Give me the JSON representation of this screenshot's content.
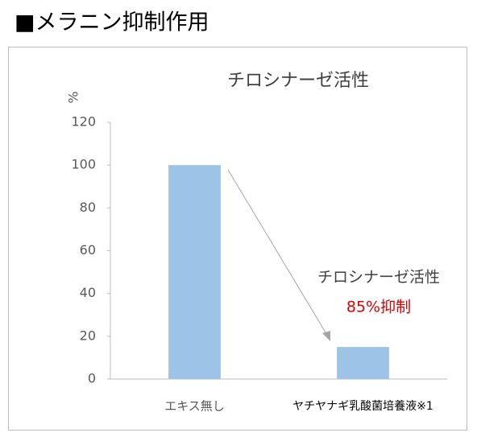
{
  "heading": "■メラニン抑制作用",
  "chart_data": {
    "type": "bar",
    "title": "チロシナーゼ活性",
    "y_label": "%",
    "categories": [
      "エキス無し",
      "ヤチヤナギ乳酸菌培養液※1"
    ],
    "values": [
      100,
      15
    ],
    "color": "#9dc3e6",
    "ylim": [
      0,
      120
    ],
    "yticks": [
      0,
      20,
      40,
      60,
      80,
      100,
      120
    ],
    "grid": false,
    "annotations": [
      {
        "text": "チロシナーゼ活性",
        "color": "#404040"
      },
      {
        "text": "85%抑制",
        "color": "#e00000"
      }
    ]
  }
}
